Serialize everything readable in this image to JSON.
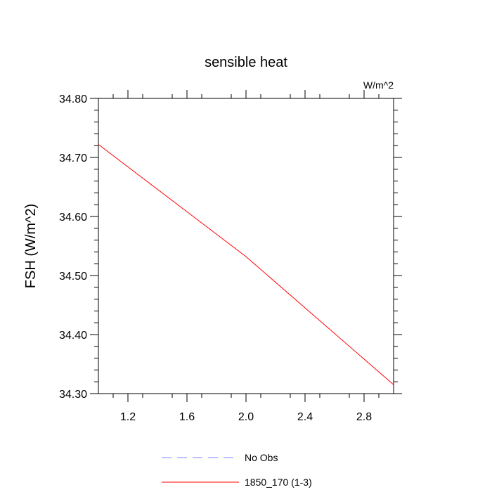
{
  "chart_data": {
    "type": "line",
    "title": "sensible heat",
    "units_label": "W/m^2",
    "xlabel": "",
    "ylabel": "FSH  (W/m^2)",
    "xlim": [
      1.0,
      3.0
    ],
    "ylim": [
      34.3,
      34.8
    ],
    "x_ticks": [
      1.2,
      1.6,
      2.0,
      2.4,
      2.8
    ],
    "x_tick_labels": [
      "1.2",
      "1.6",
      "2.0",
      "2.4",
      "2.8"
    ],
    "y_ticks": [
      34.3,
      34.4,
      34.5,
      34.6,
      34.7,
      34.8
    ],
    "y_tick_labels": [
      "34.30",
      "34.40",
      "34.50",
      "34.60",
      "34.70",
      "34.80"
    ],
    "grid": false,
    "legend_position": "bottom",
    "series": [
      {
        "name": "1850_170 (1-3)",
        "x": [
          1.0,
          2.0,
          3.0
        ],
        "y": [
          34.722,
          34.532,
          34.315
        ],
        "color": "#ff0000",
        "style": "solid"
      }
    ],
    "legend": [
      {
        "label": "No Obs",
        "color": "#7f7fff",
        "style": "dashed"
      },
      {
        "label": "1850_170 (1-3)",
        "color": "#ff0000",
        "style": "solid"
      }
    ]
  }
}
